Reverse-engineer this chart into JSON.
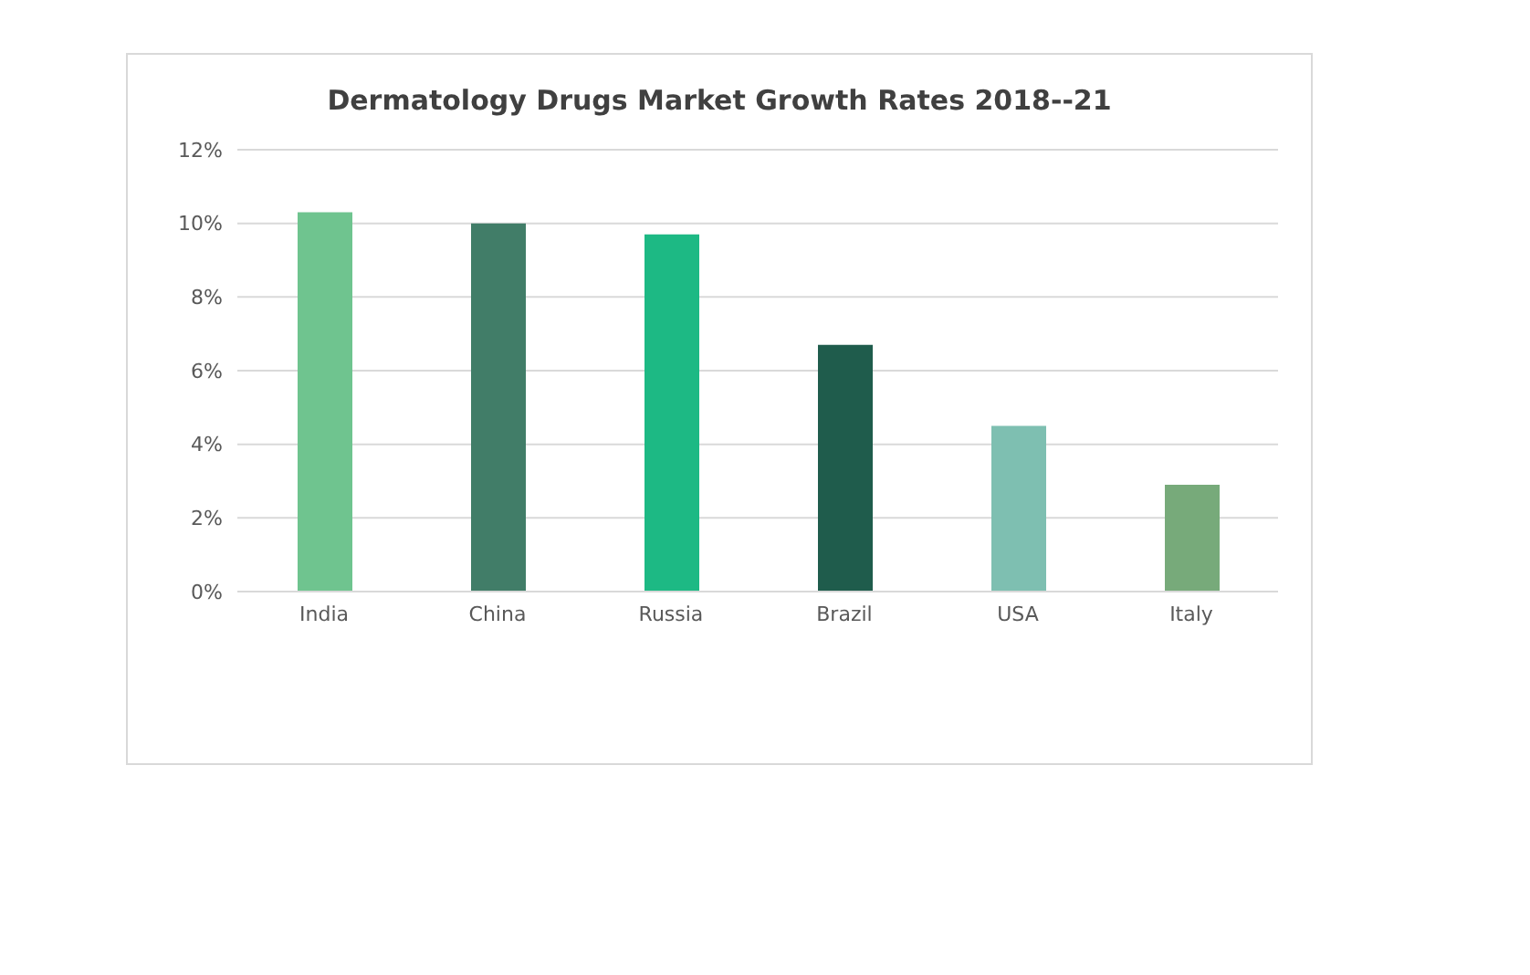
{
  "chart_data": {
    "type": "bar",
    "title": "Dermatology Drugs  Market Growth Rates 2018--21",
    "categories": [
      "India",
      "China",
      "Russia",
      "Brazil",
      "USA",
      "Italy"
    ],
    "values": [
      10.3,
      10.0,
      9.7,
      6.7,
      4.5,
      2.9
    ],
    "colors": [
      "#6fc48f",
      "#417d68",
      "#1db984",
      "#1f5c4c",
      "#7ebfb1",
      "#77aa7a"
    ],
    "ylim": [
      0,
      12
    ],
    "yticks": [
      {
        "value": 0,
        "label": "0%"
      },
      {
        "value": 2,
        "label": "2%"
      },
      {
        "value": 4,
        "label": "4%"
      },
      {
        "value": 6,
        "label": "6%"
      },
      {
        "value": 8,
        "label": "8%"
      },
      {
        "value": 10,
        "label": "10%"
      },
      {
        "value": 12,
        "label": "12%"
      }
    ],
    "grid": "y"
  }
}
